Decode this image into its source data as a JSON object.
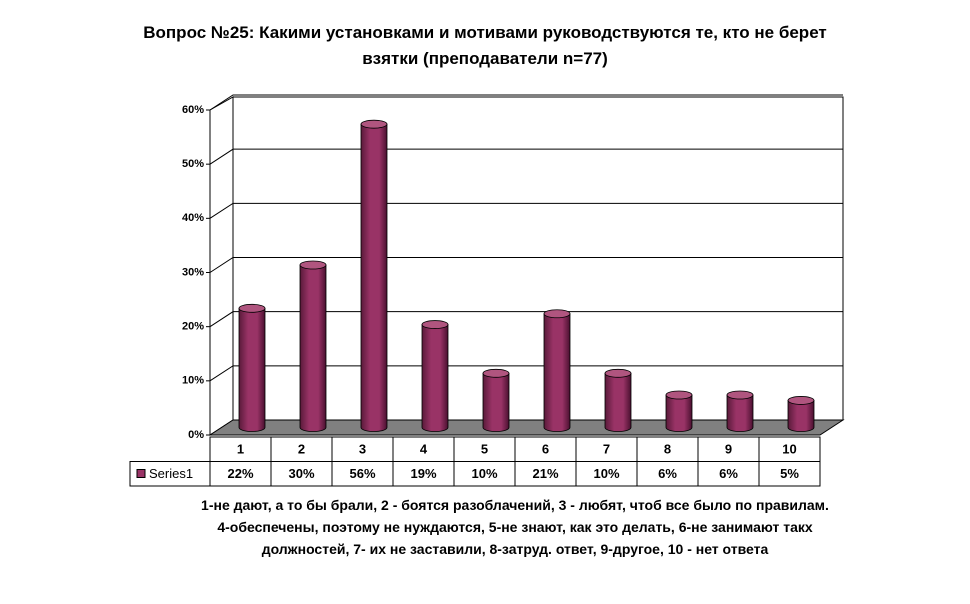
{
  "chart_data": {
    "type": "bar3d",
    "title": "Вопрос №25: Какими установками и мотивами руководствуются те, кто не берет взятки (преподаватели n=77)",
    "categories": [
      "1",
      "2",
      "3",
      "4",
      "5",
      "6",
      "7",
      "8",
      "9",
      "10"
    ],
    "series": [
      {
        "name": "Series1",
        "color": "#993366",
        "values": [
          22,
          30,
          56,
          19,
          10,
          21,
          10,
          6,
          6,
          5
        ],
        "value_labels": [
          "22%",
          "30%",
          "56%",
          "19%",
          "10%",
          "21%",
          "10%",
          "6%",
          "6%",
          "5%"
        ]
      }
    ],
    "ylim": [
      0,
      60
    ],
    "yticks": [
      {
        "value": 0,
        "label": "0%"
      },
      {
        "value": 10,
        "label": "10%"
      },
      {
        "value": 20,
        "label": "20%"
      },
      {
        "value": 30,
        "label": "30%"
      },
      {
        "value": 40,
        "label": "40%"
      },
      {
        "value": 50,
        "label": "50%"
      },
      {
        "value": 60,
        "label": "60%"
      }
    ],
    "grid": true,
    "caption": "1-не дают, а то бы брали, 2 - боятся разоблачений, 3 - любят, чтоб все было по правилам. 4-обеспечены, поэтому не нуждаются, 5-не знают, как это делать, 6-не занимают такх должностей, 7- их не заставили, 8-затруд. ответ, 9-другое, 10 - нет ответа"
  }
}
